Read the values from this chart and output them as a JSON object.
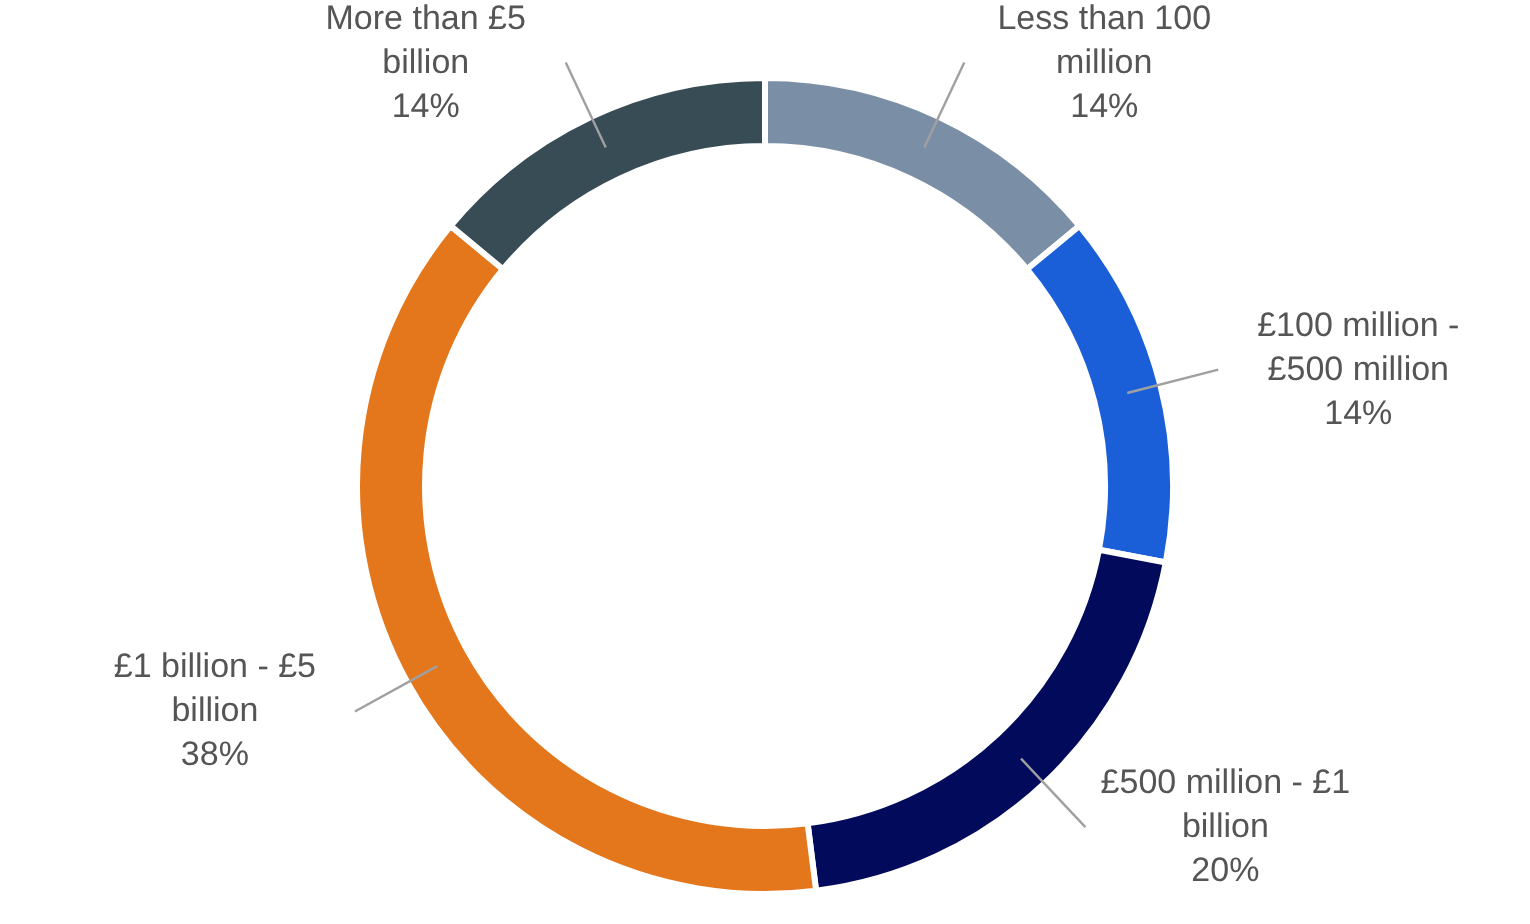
{
  "chart_data": {
    "type": "donut",
    "categories": [
      "Less than 100 million",
      "£100 million - £500 million",
      "£500 million - £1 billion",
      "£1 billion - £5 billion",
      "More than £5 billion"
    ],
    "values": [
      14,
      14,
      20,
      38,
      14
    ],
    "value_labels": [
      "14%",
      "14%",
      "20%",
      "38%",
      "14%"
    ],
    "colors": [
      "#7a8ea5",
      "#1a5fd8",
      "#020a5c",
      "#e4771c",
      "#384c55"
    ]
  }
}
